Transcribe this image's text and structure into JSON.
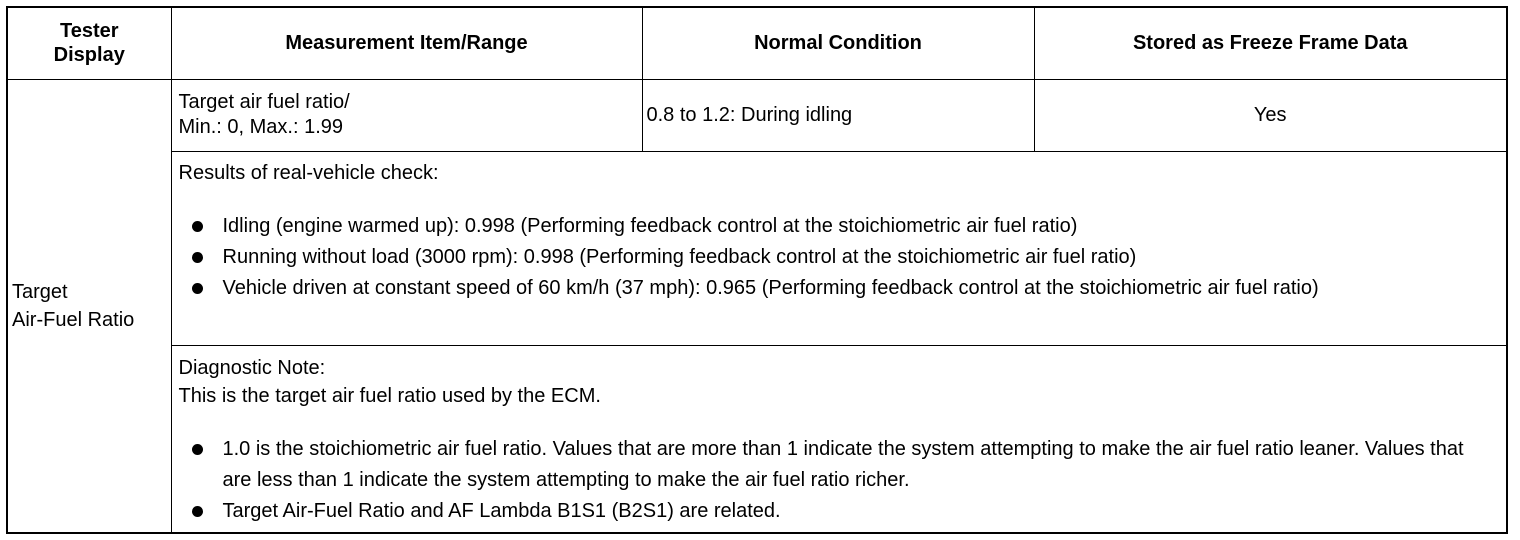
{
  "table": {
    "header": [
      "Tester Display",
      "Measurement Item/Range",
      "Normal Condition",
      "Stored as Freeze Frame Data"
    ],
    "tester_display": [
      "Target",
      "Air-Fuel Ratio"
    ],
    "measurement_item": [
      "Target air fuel ratio/",
      "Min.: 0, Max.: 1.99"
    ],
    "normal_condition": "0.8 to 1.2: During idling",
    "freeze_frame": "Yes",
    "results": {
      "heading": "Results of real-vehicle check:",
      "items": [
        "Idling (engine warmed up): 0.998 (Performing feedback control at the stoichiometric air fuel ratio)",
        "Running without load (3000 rpm): 0.998 (Performing feedback control at the stoichiometric air fuel ratio)",
        "Vehicle driven at constant speed of 60 km/h (37 mph): 0.965 (Performing feedback control at the stoichiometric air fuel ratio)"
      ]
    },
    "diagnostic_note": {
      "heading": "Diagnostic Note:",
      "text": "This is the target air fuel ratio used by the ECM.",
      "items": [
        "1.0 is the stoichiometric air fuel ratio. Values that are more than 1 indicate the system attempting to make the air fuel ratio leaner. Values that are less than 1 indicate the system attempting to make the air fuel ratio richer.",
        "Target Air-Fuel Ratio and AF Lambda B1S1 (B2S1) are related."
      ]
    }
  }
}
